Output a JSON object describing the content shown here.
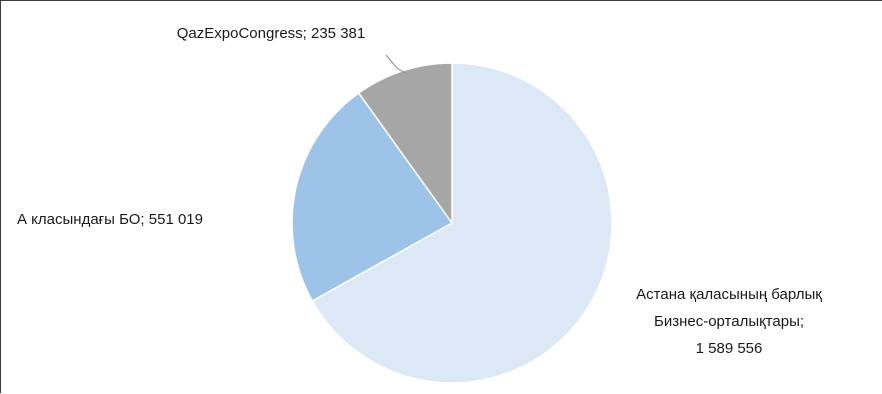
{
  "chart_data": {
    "type": "pie",
    "slices": [
      {
        "label_lines": [
          "Астана қаласының барлық",
          "Бизнес-орталықтары;",
          "1 589 556"
        ],
        "value": 1589556,
        "color": "#dce8f6"
      },
      {
        "label_lines": [
          "А класындағы БО; 551 019"
        ],
        "value": 551019,
        "color": "#9dc3e8"
      },
      {
        "label_lines": [
          "QazExpoCongress; 235 381"
        ],
        "value": 235381,
        "color": "#a6a6a6"
      }
    ],
    "start": "12 o'clock",
    "direction": "clockwise",
    "legend": "none",
    "data_labels": "category; value"
  }
}
